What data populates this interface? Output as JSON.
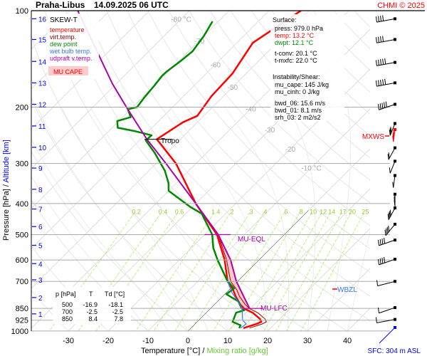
{
  "header": {
    "station": "Praha-Libus",
    "datetime": "14.09.2025 06 UTC",
    "credit": "CHMI © 2025"
  },
  "legend": {
    "title": "SKEW-T",
    "items": [
      {
        "label": "temperature",
        "color": "#ff0000"
      },
      {
        "label": "virt.temp.",
        "color": "#a00000"
      },
      {
        "label": "dew point",
        "color": "#008800"
      },
      {
        "label": "wet bulb temp.",
        "color": "#3377ff"
      },
      {
        "label": "udpraft v.temp.",
        "color": "#aa00aa"
      }
    ],
    "cape_label": "MU CAPE"
  },
  "surface": {
    "title": "Surface:",
    "press": "press: 979.0 hPa",
    "temp": "temp: 13.2 °C",
    "dwpt": "dwpt: 12.1 °C",
    "tconv": "t-conv: 20.1 °C",
    "tmxfc": "t-mxfc: 22.0 °C"
  },
  "instability": {
    "title": "Instability/Shear:",
    "mu_cape": "mu_cape: 145 J/kg",
    "mu_cinh": "mu_cinh: 0 J/kg",
    "bwd_06": "bwd_06: 15.6 m/s",
    "bwd_01": "bwd_01: 8.1 m/s",
    "srh_03": "srh_03: 2 m2/s2"
  },
  "levels_table": {
    "headers": [
      "p [hPa]",
      "T",
      "Td [°C]"
    ],
    "rows": [
      [
        "500",
        "-16.9",
        "-18.1"
      ],
      [
        "700",
        "-2.5",
        "-2.5"
      ],
      [
        "850",
        "8.4",
        "7.8"
      ]
    ]
  },
  "annotations": {
    "tropo": "Tropo",
    "mu_eql": "MU-EQL",
    "mu_lfc": "MU-LFC",
    "mxws": "MXWS",
    "wbzl": "WBZL",
    "sfc": "SFC: 304 m ASL"
  },
  "chart_data": {
    "type": "line",
    "title": "Praha-Libus 14.09.2025 06 UTC",
    "xlabel": "Temperature [°C]",
    "xlabel2": "Mixing ratio [g/kg]",
    "ylabel": "Pressure [hPa]",
    "ylabel2": "Altitude [km]",
    "xlim": [
      -35,
      45
    ],
    "ylim": [
      1000,
      100
    ],
    "pressure_ticks": [
      100,
      200,
      300,
      400,
      500,
      600,
      700,
      850,
      925,
      1000
    ],
    "temperature_ticks": [
      -30,
      -20,
      -10,
      0,
      10,
      20,
      30,
      40
    ],
    "altitude_km_ticks": [
      {
        "km": 16,
        "p": 106
      },
      {
        "km": 15,
        "p": 123
      },
      {
        "km": 14,
        "p": 144
      },
      {
        "km": 13,
        "p": 168
      },
      {
        "km": 12,
        "p": 196
      },
      {
        "km": 11,
        "p": 229
      },
      {
        "km": 10,
        "p": 267
      },
      {
        "km": 9,
        "p": 310
      },
      {
        "km": 8,
        "p": 361
      },
      {
        "km": 7,
        "p": 416
      },
      {
        "km": 6,
        "p": 472
      },
      {
        "km": 5,
        "p": 540
      },
      {
        "km": 4,
        "p": 616
      },
      {
        "km": 3,
        "p": 692
      },
      {
        "km": 2,
        "p": 786
      },
      {
        "km": 1,
        "p": 884
      }
    ],
    "isotherm_labels": [
      {
        "t": -80,
        "text": "-80 °C",
        "p": 106
      },
      {
        "t": -70,
        "text": "-70",
        "p": 124
      },
      {
        "t": -60,
        "text": "-60",
        "p": 147
      },
      {
        "t": -50,
        "text": "-50",
        "p": 173
      },
      {
        "t": -40,
        "text": "-40",
        "p": 202
      },
      {
        "t": -30,
        "text": "-30",
        "p": 235
      },
      {
        "t": -20,
        "text": "-20",
        "p": 270
      },
      {
        "t": -10,
        "text": "-10 °C",
        "p": 309
      }
    ],
    "mixing_ratio_lines": [
      0.2,
      0.4,
      0.6,
      1.4,
      2,
      3,
      4,
      6,
      8,
      10,
      12,
      14,
      17,
      20,
      25
    ],
    "mixing_ratio_label_p": 420,
    "series": [
      {
        "name": "temperature",
        "color": "#ff0000",
        "points": [
          [
            979,
            13.2
          ],
          [
            951,
            15.4
          ],
          [
            936,
            16.1
          ],
          [
            916,
            15.0
          ],
          [
            876,
            11.6
          ],
          [
            850,
            8.4
          ],
          [
            825,
            6.4
          ],
          [
            781,
            3.4
          ],
          [
            742,
            0.9
          ],
          [
            700,
            -2.5
          ],
          [
            600,
            -8.6
          ],
          [
            500,
            -16.9
          ],
          [
            400,
            -30
          ],
          [
            300,
            -45
          ],
          [
            252,
            -55.9
          ],
          [
            223,
            -53.6
          ],
          [
            213,
            -51.6
          ],
          [
            185,
            -53
          ],
          [
            157,
            -53.4
          ],
          [
            126,
            -56
          ],
          [
            100,
            -52
          ]
        ]
      },
      {
        "name": "dew point",
        "color": "#008800",
        "points": [
          [
            979,
            12.1
          ],
          [
            960,
            11.8
          ],
          [
            936,
            8.9
          ],
          [
            876,
            7.5
          ],
          [
            861,
            8.9
          ],
          [
            850,
            7.8
          ],
          [
            808,
            5.2
          ],
          [
            781,
            2.0
          ],
          [
            767,
            0.4
          ],
          [
            736,
            0.9
          ],
          [
            700,
            -2.5
          ],
          [
            600,
            -10.4
          ],
          [
            550,
            -14.5
          ],
          [
            500,
            -18.1
          ],
          [
            430,
            -26
          ],
          [
            410,
            -30.5
          ],
          [
            365,
            -40
          ],
          [
            345,
            -42
          ],
          [
            316,
            -46
          ],
          [
            278,
            -53
          ],
          [
            254,
            -58.4
          ],
          [
            245,
            -58.2
          ],
          [
            238,
            -63.2
          ],
          [
            232,
            -68.6
          ],
          [
            221,
            -70.4
          ],
          [
            215,
            -68
          ],
          [
            203,
            -70.7
          ],
          [
            200,
            -68.9
          ],
          [
            187,
            -69.5
          ],
          [
            171,
            -70
          ],
          [
            160,
            -70.5
          ],
          [
            155,
            -70.4
          ],
          [
            143,
            -69.5
          ],
          [
            134,
            -69
          ],
          [
            120,
            -70
          ],
          [
            108,
            -71.5
          ]
        ]
      },
      {
        "name": "wet bulb temp.",
        "color": "#3377ff",
        "points": [
          [
            979,
            12.5
          ],
          [
            950,
            12.8
          ],
          [
            925,
            11.0
          ],
          [
            876,
            9.0
          ],
          [
            850,
            8.0
          ],
          [
            800,
            4.5
          ],
          [
            760,
            1.5
          ],
          [
            700,
            -2.5
          ]
        ]
      },
      {
        "name": "udpraft v.temp.",
        "color": "#aa00aa",
        "points": [
          [
            850,
            9.8
          ],
          [
            700,
            -0.3
          ],
          [
            600,
            -7.1
          ],
          [
            500,
            -16.6
          ],
          [
            400,
            -30
          ],
          [
            300,
            -47.5
          ],
          [
            252,
            -58.4
          ],
          [
            200,
            -71.6
          ],
          [
            169,
            -81
          ],
          [
            100,
            -108
          ]
        ]
      }
    ],
    "levels": {
      "tropopause_p": 252,
      "mu_eql_p": 500,
      "mu_lfc_p": 850,
      "wbzl_p": 735,
      "mxws_p": 235
    },
    "winds": [
      {
        "p": 106,
        "dir": 280,
        "kt": 35
      },
      {
        "p": 123,
        "dir": 280,
        "kt": 35
      },
      {
        "p": 145,
        "dir": 280,
        "kt": 45
      },
      {
        "p": 168,
        "dir": 280,
        "kt": 45
      },
      {
        "p": 196,
        "dir": 300,
        "kt": 45
      },
      {
        "p": 225,
        "dir": 345,
        "kt": 25
      },
      {
        "p": 235,
        "dir": 355,
        "kt": 45
      },
      {
        "p": 268,
        "dir": 20,
        "kt": 20
      },
      {
        "p": 295,
        "dir": 345,
        "kt": 5
      },
      {
        "p": 327,
        "dir": 5,
        "kt": 5
      },
      {
        "p": 374,
        "dir": 0,
        "kt": 40
      },
      {
        "p": 413,
        "dir": 340,
        "kt": 35
      },
      {
        "p": 464,
        "dir": 330,
        "kt": 35
      },
      {
        "p": 520,
        "dir": 300,
        "kt": 35
      },
      {
        "p": 597,
        "dir": 300,
        "kt": 35
      },
      {
        "p": 700,
        "dir": 290,
        "kt": 10
      },
      {
        "p": 845,
        "dir": 300,
        "kt": 10
      },
      {
        "p": 920,
        "dir": 280,
        "kt": 10
      },
      {
        "p": 975,
        "dir": 225,
        "kt": 0
      }
    ]
  }
}
